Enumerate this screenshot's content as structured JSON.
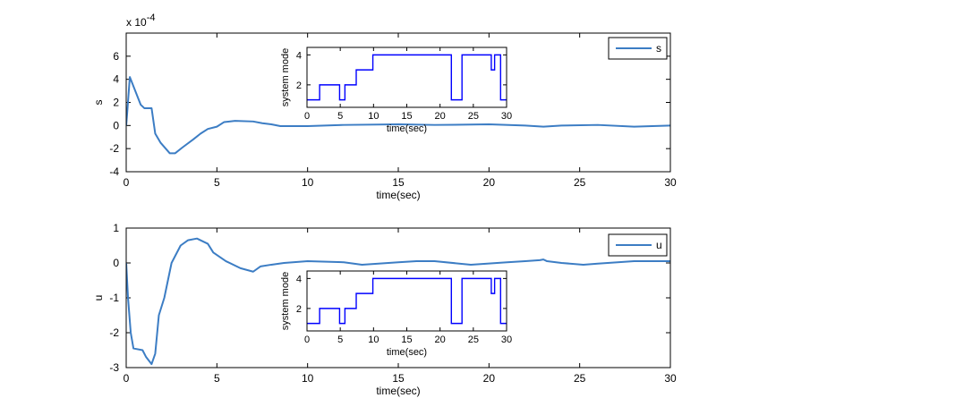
{
  "chart_data": [
    {
      "type": "line",
      "title": "",
      "xlabel": "time(sec)",
      "ylabel": "s",
      "exponent_label": "x 10",
      "exponent_power": "-4",
      "xlim": [
        0,
        30
      ],
      "ylim": [
        -4,
        8
      ],
      "xticks": [
        "0",
        "5",
        "10",
        "15",
        "20",
        "25",
        "30"
      ],
      "yticks": [
        "-4",
        "-2",
        "0",
        "2",
        "4",
        "6"
      ],
      "legend": {
        "entries": [
          "s"
        ],
        "placement": "top-right"
      },
      "color": "#3c7dc4",
      "series": [
        {
          "name": "s",
          "x": [
            0,
            0.05,
            0.2,
            0.5,
            0.8,
            1.0,
            1.4,
            1.6,
            1.9,
            2.4,
            2.7,
            3.1,
            3.7,
            4.1,
            4.5,
            5.0,
            5.4,
            6.0,
            7.0,
            7.5,
            8.0,
            8.5,
            10,
            12,
            15,
            17,
            20,
            22,
            23,
            24,
            26,
            28,
            30
          ],
          "y": [
            0,
            1,
            4.2,
            3,
            1.8,
            1.5,
            1.5,
            -0.7,
            -1.5,
            -2.4,
            -2.4,
            -1.9,
            -1.2,
            -0.7,
            -0.3,
            -0.1,
            0.3,
            0.4,
            0.35,
            0.2,
            0.1,
            -0.05,
            -0.05,
            0.05,
            0.1,
            0.05,
            0.1,
            0,
            -0.1,
            0,
            0.05,
            -0.1,
            0
          ]
        }
      ],
      "inset": {
        "type": "line",
        "xlabel": "time(sec)",
        "ylabel": "system mode",
        "xlim": [
          0,
          30
        ],
        "ylim": [
          0.5,
          4.5
        ],
        "xticks": [
          "0",
          "5",
          "10",
          "15",
          "20",
          "25",
          "30"
        ],
        "yticks": [
          "2",
          "4"
        ],
        "color": "#0000ff",
        "step": {
          "t": [
            0,
            1.9,
            4.9,
            5.7,
            7.4,
            9.9,
            21.7,
            23.3,
            27.7,
            28.2,
            29.1,
            30
          ],
          "mode": [
            1,
            2,
            1,
            2,
            3,
            4,
            1,
            4,
            3,
            4,
            1,
            1
          ]
        }
      }
    },
    {
      "type": "line",
      "title": "",
      "xlabel": "time(sec)",
      "ylabel": "u",
      "xlim": [
        0,
        30
      ],
      "ylim": [
        -3,
        1
      ],
      "xticks": [
        "0",
        "5",
        "10",
        "15",
        "20",
        "25",
        "30"
      ],
      "yticks": [
        "-3",
        "-2",
        "-1",
        "0",
        "1"
      ],
      "legend": {
        "entries": [
          "u"
        ],
        "placement": "top-right"
      },
      "color": "#3c7dc4",
      "series": [
        {
          "name": "u",
          "x": [
            0,
            0.1,
            0.25,
            0.4,
            0.9,
            1.1,
            1.4,
            1.6,
            1.8,
            2.1,
            2.5,
            3.0,
            3.4,
            3.9,
            4.5,
            4.8,
            5.5,
            6.3,
            7.0,
            7.4,
            8.0,
            8.7,
            10,
            12,
            13,
            15,
            16,
            17,
            19,
            21,
            22,
            22.8,
            23,
            23.2,
            24,
            25.2,
            26,
            28,
            30
          ],
          "y": [
            0,
            -1,
            -2,
            -2.45,
            -2.5,
            -2.7,
            -2.9,
            -2.6,
            -1.5,
            -1,
            0,
            0.5,
            0.65,
            0.7,
            0.55,
            0.3,
            0.05,
            -0.15,
            -0.25,
            -0.1,
            -0.05,
            0,
            0.05,
            0.02,
            -0.05,
            0.02,
            0.05,
            0.05,
            -0.05,
            0.02,
            0.05,
            0.08,
            0.1,
            0.05,
            0,
            -0.05,
            -0.02,
            0.05,
            0.05
          ]
        }
      ],
      "inset": {
        "type": "line",
        "xlabel": "time(sec)",
        "ylabel": "system mode",
        "xlim": [
          0,
          30
        ],
        "ylim": [
          0.5,
          4.5
        ],
        "xticks": [
          "0",
          "5",
          "10",
          "15",
          "20",
          "25",
          "30"
        ],
        "yticks": [
          "2",
          "4"
        ],
        "color": "#0000ff",
        "step": {
          "t": [
            0,
            1.9,
            4.9,
            5.7,
            7.4,
            9.9,
            21.7,
            23.3,
            27.7,
            28.2,
            29.1,
            30
          ],
          "mode": [
            1,
            2,
            1,
            2,
            3,
            4,
            1,
            4,
            3,
            4,
            1,
            1
          ]
        }
      }
    }
  ]
}
